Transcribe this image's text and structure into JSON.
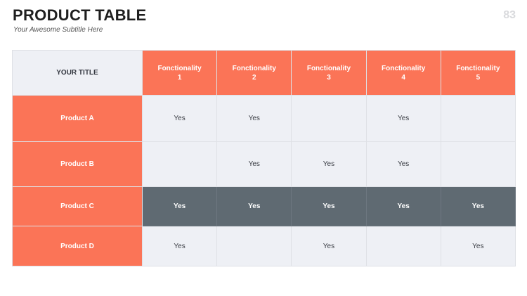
{
  "header": {
    "title": "PRODUCT TABLE",
    "subtitle": "Your Awesome Subtitle Here",
    "page_number": "83"
  },
  "table": {
    "corner_label": "YOUR TITLE",
    "features": [
      {
        "name": "Fonctionality",
        "num": "1"
      },
      {
        "name": "Fonctionality",
        "num": "2"
      },
      {
        "name": "Fonctionality",
        "num": "3"
      },
      {
        "name": "Fonctionality",
        "num": "4"
      },
      {
        "name": "Fonctionality",
        "num": "5"
      }
    ],
    "rows": [
      {
        "product": "Product A",
        "cells": [
          "Yes",
          "Yes",
          "",
          "Yes",
          ""
        ]
      },
      {
        "product": "Product B",
        "cells": [
          "",
          "Yes",
          "Yes",
          "Yes",
          ""
        ]
      },
      {
        "product": "Product C",
        "cells": [
          "Yes",
          "Yes",
          "Yes",
          "Yes",
          "Yes"
        ],
        "highlighted": true
      },
      {
        "product": "Product D",
        "cells": [
          "Yes",
          "",
          "Yes",
          "",
          "Yes"
        ]
      }
    ]
  },
  "colors": {
    "accent": "#fb7457",
    "highlight_row": "#5f6a72",
    "cell_background": "#eef0f5"
  }
}
